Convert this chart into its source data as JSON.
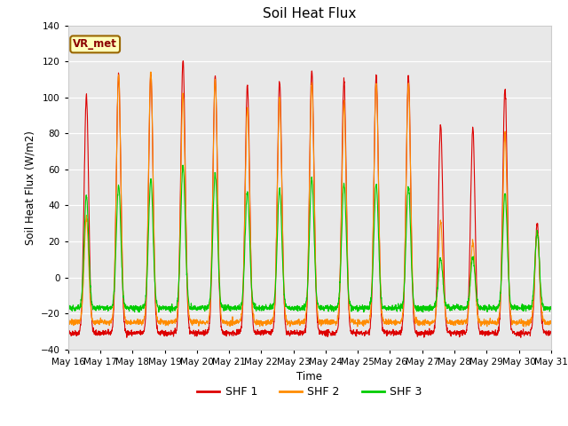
{
  "title": "Soil Heat Flux",
  "ylabel": "Soil Heat Flux (W/m2)",
  "xlabel": "Time",
  "ylim": [
    -40,
    140
  ],
  "yticks": [
    -40,
    -20,
    0,
    20,
    40,
    60,
    80,
    100,
    120,
    140
  ],
  "annotation": "VR_met",
  "colors": {
    "shf1": "#dd0000",
    "shf2": "#ff8c00",
    "shf3": "#00cc00"
  },
  "legend_labels": [
    "SHF 1",
    "SHF 2",
    "SHF 3"
  ],
  "plot_bg": "#e8e8e8",
  "fig_bg": "#ffffff",
  "n_days": 15,
  "start_day": 16,
  "points_per_day": 144,
  "day_peaks_shf1": [
    101,
    113,
    113,
    121,
    112,
    107,
    109,
    115,
    109,
    112,
    112,
    85,
    83,
    105,
    30
  ],
  "day_peaks_shf2": [
    33,
    113,
    114,
    103,
    110,
    95,
    100,
    108,
    97,
    108,
    108,
    31,
    20,
    80,
    25
  ],
  "day_peaks_shf3": [
    45,
    51,
    55,
    62,
    58,
    48,
    49,
    55,
    52,
    52,
    51,
    10,
    11,
    47,
    25
  ],
  "night_min_shf1": -31,
  "night_min_shf2": -25,
  "night_min_shf3": -17
}
